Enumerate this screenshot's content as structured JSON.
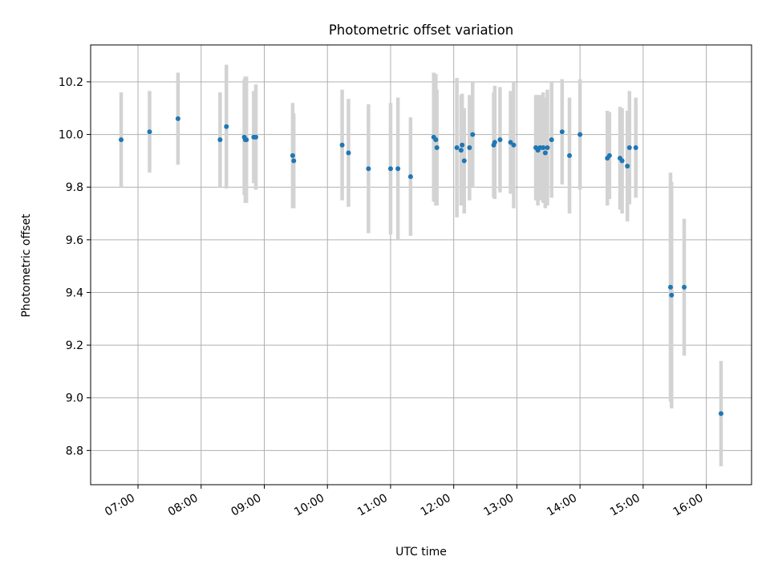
{
  "chart_data": {
    "type": "scatter",
    "title": "Photometric offset variation",
    "xlabel": "UTC time",
    "ylabel": "Photometric offset",
    "x_tick_labels": [
      "07:00",
      "08:00",
      "09:00",
      "10:00",
      "11:00",
      "12:00",
      "13:00",
      "14:00",
      "15:00",
      "16:00"
    ],
    "y_tick_labels": [
      "8.8",
      "9.0",
      "9.2",
      "9.4",
      "9.6",
      "9.8",
      "10.0",
      "10.2"
    ],
    "grid": true,
    "ylim": [
      8.67,
      10.34
    ],
    "xlim": [
      "06:15",
      "16:43"
    ],
    "colors": {
      "point": "#1f77b4",
      "errorbar": "#d3d3d3",
      "grid": "#b0b0b0"
    },
    "series": [
      {
        "x": [
          "06:44",
          "07:11",
          "07:38",
          "08:18",
          "08:24",
          "08:41",
          "08:42",
          "08:43",
          "08:50",
          "08:52",
          "09:27",
          "09:28",
          "10:14",
          "10:20",
          "10:39",
          "11:00",
          "11:07",
          "11:19",
          "11:41",
          "11:43",
          "11:44",
          "12:03",
          "12:07",
          "12:08",
          "12:10",
          "12:15",
          "12:18",
          "12:38",
          "12:39",
          "12:44",
          "12:54",
          "12:57",
          "13:18",
          "13:20",
          "13:22",
          "13:25",
          "13:27",
          "13:29",
          "13:33",
          "13:43",
          "13:50",
          "14:00",
          "14:26",
          "14:28",
          "14:38",
          "14:40",
          "14:45",
          "14:47",
          "14:53",
          "15:26",
          "15:27",
          "15:39",
          "16:14"
        ],
        "y": [
          9.98,
          10.01,
          10.06,
          9.98,
          10.03,
          9.99,
          9.98,
          9.98,
          9.99,
          9.99,
          9.92,
          9.9,
          9.96,
          9.93,
          9.87,
          9.87,
          9.87,
          9.84,
          9.99,
          9.98,
          9.95,
          9.95,
          9.94,
          9.96,
          9.9,
          9.95,
          10.0,
          9.96,
          9.97,
          9.98,
          9.97,
          9.96,
          9.95,
          9.94,
          9.95,
          9.95,
          9.93,
          9.95,
          9.98,
          10.01,
          9.92,
          10.0,
          9.91,
          9.92,
          9.91,
          9.9,
          9.88,
          9.95,
          9.95,
          9.42,
          9.39,
          9.42,
          8.94
        ],
        "yerr": [
          0.18,
          0.155,
          0.175,
          0.18,
          0.235,
          0.22,
          0.24,
          0.24,
          0.175,
          0.2,
          0.2,
          0.18,
          0.21,
          0.205,
          0.245,
          0.25,
          0.27,
          0.225,
          0.245,
          0.25,
          0.22,
          0.265,
          0.21,
          0.195,
          0.2,
          0.2,
          0.2,
          0.2,
          0.215,
          0.2,
          0.195,
          0.24,
          0.2,
          0.21,
          0.2,
          0.21,
          0.21,
          0.22,
          0.22,
          0.2,
          0.22,
          0.21,
          0.18,
          0.165,
          0.195,
          0.2,
          0.21,
          0.215,
          0.19,
          0.435,
          0.43,
          0.26,
          0.2
        ]
      }
    ]
  }
}
